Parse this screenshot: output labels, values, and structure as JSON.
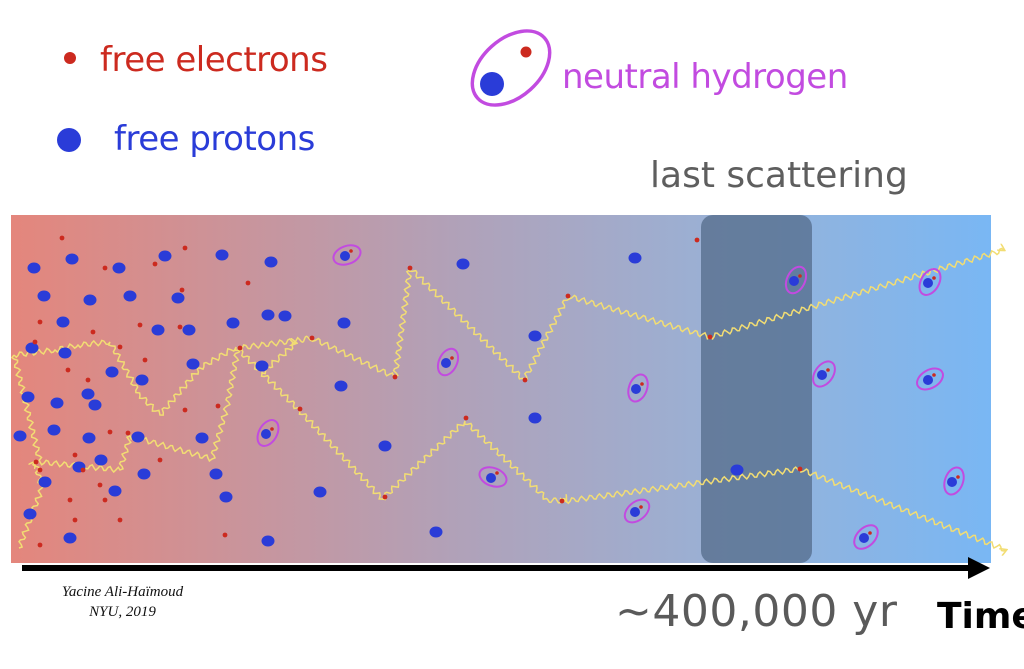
{
  "legend": {
    "electrons": "free electrons",
    "protons": "free protons",
    "hydrogen": "neutral hydrogen"
  },
  "last_scattering_label": "last scattering",
  "timeline": {
    "value": "~400,000 yr",
    "axis_label": "Time"
  },
  "credit": {
    "author": "Yacine Ali-Haïmoud",
    "affiliation": "NYU, 2019"
  },
  "colors": {
    "electron": "#cc2a1f",
    "proton": "#2a3cd8",
    "hydrogen_ring": "#c24be0",
    "photon": "#f2dd73",
    "gradient_left": "#e4867c",
    "gradient_right": "#79b7f4",
    "band": "#4f6684"
  }
}
